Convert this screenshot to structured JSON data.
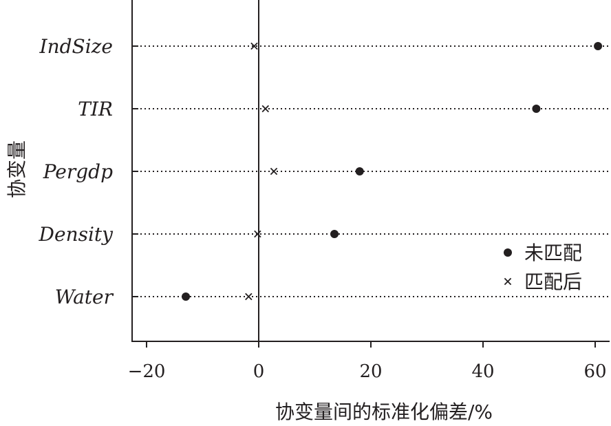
{
  "chart_data": {
    "type": "scatter",
    "categories": [
      "IndSize",
      "TIR",
      "Pergdp",
      "Density",
      "Water"
    ],
    "series": [
      {
        "name": "未匹配",
        "marker": "dot",
        "values": [
          60.5,
          49.5,
          18,
          13.5,
          -13
        ]
      },
      {
        "name": "匹配后",
        "marker": "x",
        "values": [
          -0.8,
          1.2,
          2.7,
          -0.2,
          -1.8
        ]
      }
    ],
    "xlim": [
      -23,
      62
    ],
    "xticks": [
      -20,
      0,
      20,
      40,
      60
    ],
    "xtick_labels": [
      "−20",
      "0",
      "20",
      "40",
      "60"
    ],
    "xlabel": "协变量间的标准化偏差/%",
    "ylabel": "协变量",
    "reference_line_x": 0,
    "legend_position": "lower-right",
    "grid": false,
    "color": "#231f20"
  }
}
